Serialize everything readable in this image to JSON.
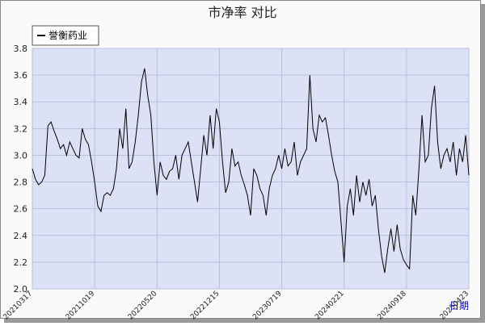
{
  "chart_data": {
    "type": "line",
    "title": "市净率  对比",
    "x_label": "日期",
    "categories": [
      "20210317",
      null,
      null,
      null,
      null,
      null,
      null,
      null,
      null,
      null,
      null,
      null,
      null,
      null,
      null,
      null,
      null,
      null,
      null,
      null,
      "20211019",
      null,
      null,
      null,
      null,
      null,
      null,
      null,
      null,
      null,
      null,
      null,
      null,
      null,
      null,
      null,
      null,
      null,
      null,
      null,
      "20220520",
      null,
      null,
      null,
      null,
      null,
      null,
      null,
      null,
      null,
      null,
      null,
      null,
      null,
      null,
      null,
      null,
      null,
      null,
      null,
      "20221215",
      null,
      null,
      null,
      null,
      null,
      null,
      null,
      null,
      null,
      null,
      null,
      null,
      null,
      null,
      null,
      null,
      null,
      null,
      null,
      "20230719",
      null,
      null,
      null,
      null,
      null,
      null,
      null,
      null,
      null,
      null,
      null,
      null,
      null,
      null,
      null,
      null,
      null,
      null,
      null,
      "20240221",
      null,
      null,
      null,
      null,
      null,
      null,
      null,
      null,
      null,
      null,
      null,
      null,
      null,
      null,
      null,
      null,
      null,
      null,
      null,
      "20240918",
      null,
      null,
      null,
      null,
      null,
      null,
      null,
      null,
      null,
      null,
      null,
      null,
      null,
      null,
      null,
      null,
      null,
      null,
      null,
      "20250423"
    ],
    "series": [
      {
        "name": "誉衡药业",
        "color": "#000000",
        "values": [
          2.9,
          2.82,
          2.78,
          2.8,
          2.85,
          3.22,
          3.25,
          3.18,
          3.12,
          3.05,
          3.08,
          3.0,
          3.1,
          3.05,
          3.0,
          2.98,
          3.2,
          3.12,
          3.08,
          2.95,
          2.8,
          2.62,
          2.58,
          2.7,
          2.72,
          2.7,
          2.75,
          2.9,
          3.2,
          3.05,
          3.35,
          2.9,
          2.95,
          3.1,
          3.3,
          3.55,
          3.65,
          3.45,
          3.3,
          2.95,
          2.7,
          2.95,
          2.85,
          2.82,
          2.88,
          2.9,
          3.0,
          2.82,
          3.0,
          3.05,
          3.1,
          2.95,
          2.8,
          2.65,
          2.9,
          3.15,
          3.0,
          3.3,
          3.05,
          3.35,
          3.25,
          2.95,
          2.72,
          2.8,
          3.05,
          2.92,
          2.95,
          2.85,
          2.78,
          2.7,
          2.55,
          2.9,
          2.85,
          2.75,
          2.7,
          2.55,
          2.75,
          2.85,
          2.9,
          3.0,
          2.9,
          3.05,
          2.92,
          2.95,
          3.1,
          2.85,
          2.95,
          3.0,
          3.05,
          3.6,
          3.2,
          3.1,
          3.3,
          3.25,
          3.28,
          3.15,
          3.0,
          2.88,
          2.8,
          2.5,
          2.2,
          2.62,
          2.75,
          2.55,
          2.85,
          2.65,
          2.8,
          2.7,
          2.82,
          2.62,
          2.7,
          2.45,
          2.25,
          2.12,
          2.3,
          2.45,
          2.28,
          2.48,
          2.3,
          2.22,
          2.18,
          2.15,
          2.7,
          2.55,
          2.9,
          3.3,
          2.95,
          3.0,
          3.35,
          3.52,
          3.1,
          2.9,
          3.0,
          3.05,
          2.95,
          3.1,
          2.85,
          3.05,
          2.95,
          3.15,
          2.85
        ]
      }
    ],
    "ylim": [
      2.0,
      3.8
    ],
    "yticks": [
      {
        "value": 2.0,
        "label": "2.0"
      },
      2.2,
      2.4,
      2.6,
      2.8,
      {
        "value": 3.0,
        "label": "3.0"
      },
      3.2,
      3.4,
      3.6,
      3.8
    ],
    "grid": true,
    "legend": "top-left"
  }
}
